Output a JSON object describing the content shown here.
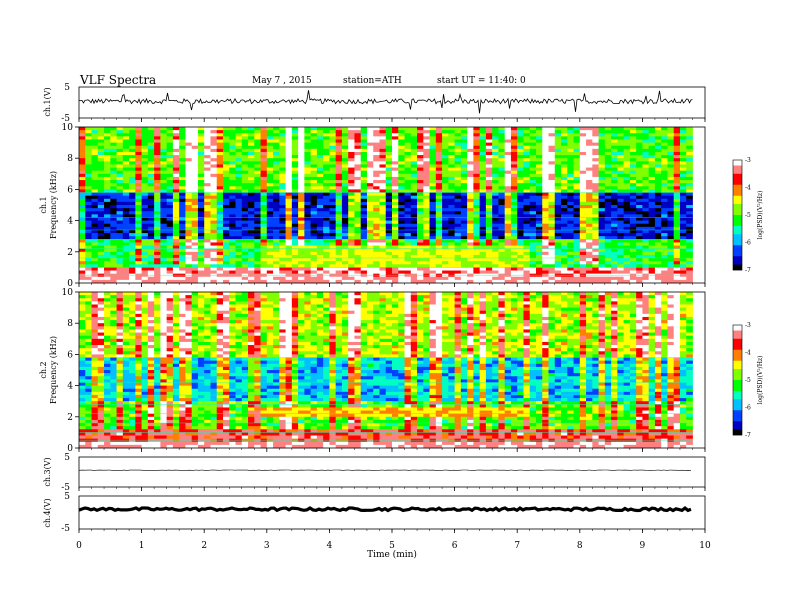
{
  "header": {
    "title": "VLF Spectra",
    "date": "May 7 , 2015",
    "station": "station=ATH",
    "start": "start UT = 11:40: 0"
  },
  "chart_data": [
    {
      "type": "line",
      "panel": "ch1_waveform",
      "ylabel": "ch.1(V)",
      "ylim": [
        -5,
        5
      ],
      "y_ticks": [
        "5",
        "-5"
      ],
      "baseline_v": 0.4,
      "noise_amplitude_v": 0.8,
      "spikes_v": [
        4,
        -3.5
      ],
      "line_color": "#000000"
    },
    {
      "type": "heatmap",
      "panel": "ch1_spectrogram",
      "ylabel": "ch.1\nFrequency (kHz)",
      "ylabel_lines": [
        "ch.1",
        "Frequency (kHz)"
      ],
      "ylim": [
        0,
        10
      ],
      "y_ticks": [
        "0",
        "2",
        "4",
        "6",
        "8",
        "10"
      ],
      "xlim": [
        0,
        10
      ],
      "data_end_min": 9.8,
      "colorbar": {
        "label": "log(PSD)(V²/Hz)",
        "range": [
          -7,
          -3
        ],
        "ticks": [
          "-3",
          "-4",
          "-5",
          "-6",
          "-7"
        ],
        "colors": [
          "#ffffff",
          "#ff8080",
          "#ff0000",
          "#ff8000",
          "#ffff00",
          "#80ff00",
          "#00ff00",
          "#00ffc0",
          "#00c0ff",
          "#0040ff",
          "#0000c0",
          "#000000"
        ]
      },
      "bands_khz": [
        {
          "from": 0,
          "to": 1,
          "logpsd": -3.3
        },
        {
          "from": 1,
          "to": 2.8,
          "logpsd": -5.2
        },
        {
          "from": 2.8,
          "to": 5.8,
          "logpsd": -6.5
        },
        {
          "from": 5.8,
          "to": 10,
          "logpsd": -5.0
        }
      ],
      "event": {
        "from_min": 2.9,
        "to_min": 7.2,
        "band_khz": [
          1.0,
          2.4
        ],
        "logpsd": -4.6
      }
    },
    {
      "type": "heatmap",
      "panel": "ch2_spectrogram",
      "ylabel": "ch.2\nFrequency (kHz)",
      "ylabel_lines": [
        "ch.2",
        "Frequency (kHz)"
      ],
      "ylim": [
        0,
        10
      ],
      "y_ticks": [
        "0",
        "2",
        "4",
        "6",
        "8",
        "10"
      ],
      "xlim": [
        0,
        10
      ],
      "data_end_min": 9.8,
      "colorbar": {
        "label": "log(PSD)(V²/Hz)",
        "range": [
          -7,
          -3
        ],
        "ticks": [
          "-3",
          "-4",
          "-5",
          "-6",
          "-7"
        ]
      },
      "bands_khz": [
        {
          "from": 0,
          "to": 1.2,
          "logpsd": -3.6
        },
        {
          "from": 1.2,
          "to": 3.0,
          "logpsd": -5.0
        },
        {
          "from": 3.0,
          "to": 5.8,
          "logpsd": -5.8
        },
        {
          "from": 5.8,
          "to": 10,
          "logpsd": -4.7
        }
      ],
      "event": {
        "from_min": 2.9,
        "to_min": 7.2,
        "band_khz": [
          2.0,
          2.6
        ],
        "logpsd": -4.3
      }
    },
    {
      "type": "line",
      "panel": "ch3_waveform",
      "ylabel": "ch.3(V)",
      "ylim": [
        -5,
        5
      ],
      "y_ticks": [
        "5",
        "-5"
      ],
      "baseline_v": 0.6,
      "noise_amplitude_v": 0.08,
      "line_color": "#000000"
    },
    {
      "type": "line",
      "panel": "ch4_waveform",
      "ylabel": "ch.4(V)",
      "ylim": [
        -5,
        5
      ],
      "y_ticks": [
        "5",
        "-5"
      ],
      "baseline_v": 1.0,
      "noise_amplitude_v": 0.4,
      "line_color": "#000000"
    }
  ],
  "xaxis": {
    "label": "Time (min)",
    "ticks": [
      "0",
      "1",
      "2",
      "3",
      "4",
      "5",
      "6",
      "7",
      "8",
      "9",
      "10"
    ],
    "range": [
      0,
      10
    ]
  }
}
